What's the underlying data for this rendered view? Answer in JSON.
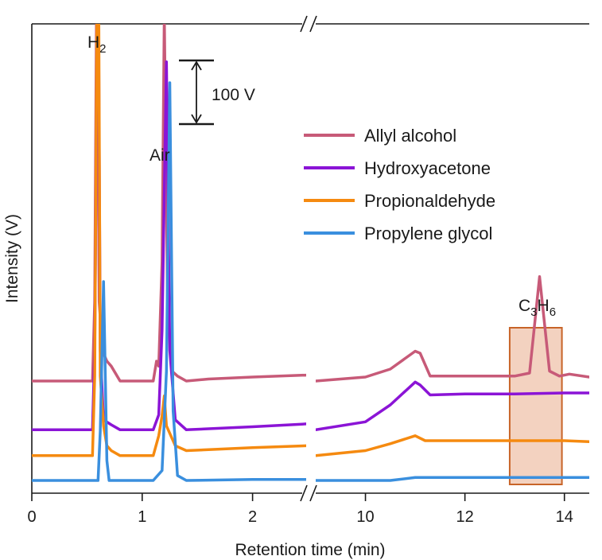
{
  "chart_data": {
    "type": "line",
    "title": "",
    "xlabel": "Retention time (min)",
    "ylabel": "Intensity (V)",
    "broken_axis": true,
    "segments": [
      {
        "xlim": [
          0,
          2.5
        ],
        "ticks": [
          0,
          1,
          2
        ],
        "tick_labels": [
          "0",
          "1",
          "2"
        ]
      },
      {
        "xlim": [
          9.0,
          14.5
        ],
        "ticks": [
          10,
          12,
          14
        ],
        "tick_labels": [
          "10",
          "12",
          "14"
        ]
      }
    ],
    "scale_bar": {
      "label": "100 V",
      "value": 100
    },
    "units_per_volt": 0.8,
    "legend": [
      {
        "name": "Allyl alcohol",
        "color": "#c75a78"
      },
      {
        "name": "Hydroxyacetone",
        "color": "#8b14d6"
      },
      {
        "name": "Propionaldehyde",
        "color": "#f58a10"
      },
      {
        "name": "Propylene glycol",
        "color": "#3a8fde"
      }
    ],
    "annotations": [
      {
        "id": "h2",
        "text": "H",
        "sub": "2"
      },
      {
        "id": "air",
        "text": "Air"
      },
      {
        "id": "c3h6",
        "parts": [
          "C",
          "3",
          "H",
          "6"
        ],
        "box_x": [
          12.9,
          13.95
        ],
        "box_color": "#f3d2c0",
        "box_edge": "#c86428"
      }
    ],
    "series": [
      {
        "name": "Allyl alcohol",
        "color": "#c75a78",
        "baseline": 100,
        "seg1": [
          [
            0,
            0
          ],
          [
            0.55,
            0
          ],
          [
            0.57,
            80
          ],
          [
            0.59,
            450
          ],
          [
            0.61,
            80
          ],
          [
            0.64,
            30
          ],
          [
            0.68,
            20
          ],
          [
            0.72,
            15
          ],
          [
            0.8,
            0
          ],
          [
            1.1,
            0
          ],
          [
            1.13,
            20
          ],
          [
            1.15,
            15
          ],
          [
            1.18,
            120
          ],
          [
            1.2,
            370
          ],
          [
            1.23,
            80
          ],
          [
            1.27,
            10
          ],
          [
            1.32,
            5
          ],
          [
            1.4,
            0
          ],
          [
            1.6,
            2
          ],
          [
            2.0,
            4
          ],
          [
            2.5,
            6
          ]
        ],
        "seg2": [
          [
            9.0,
            0
          ],
          [
            10.0,
            4
          ],
          [
            10.5,
            12
          ],
          [
            11.0,
            30
          ],
          [
            11.1,
            28
          ],
          [
            11.3,
            5
          ],
          [
            12.0,
            5
          ],
          [
            13.0,
            5
          ],
          [
            13.3,
            8
          ],
          [
            13.5,
            105
          ],
          [
            13.7,
            10
          ],
          [
            13.9,
            5
          ],
          [
            14.1,
            7
          ],
          [
            14.5,
            4
          ]
        ]
      },
      {
        "name": "Hydroxyacetone",
        "color": "#8b14d6",
        "baseline": 51,
        "seg1": [
          [
            0,
            0
          ],
          [
            0.55,
            0
          ],
          [
            0.57,
            80
          ],
          [
            0.6,
            505
          ],
          [
            0.62,
            80
          ],
          [
            0.65,
            10
          ],
          [
            0.72,
            5
          ],
          [
            0.8,
            0
          ],
          [
            1.1,
            0
          ],
          [
            1.15,
            15
          ],
          [
            1.18,
            100
          ],
          [
            1.22,
            370
          ],
          [
            1.25,
            80
          ],
          [
            1.3,
            10
          ],
          [
            1.4,
            0
          ],
          [
            2.0,
            3
          ],
          [
            2.5,
            6
          ]
        ],
        "seg2": [
          [
            9.0,
            0
          ],
          [
            10.0,
            8
          ],
          [
            10.5,
            25
          ],
          [
            11.0,
            48
          ],
          [
            11.1,
            45
          ],
          [
            11.3,
            35
          ],
          [
            12.0,
            36
          ],
          [
            13.0,
            36
          ],
          [
            14.0,
            37
          ],
          [
            14.5,
            37
          ]
        ]
      },
      {
        "name": "Propionaldehyde",
        "color": "#f58a10",
        "baseline": 25,
        "seg1": [
          [
            0,
            0
          ],
          [
            0.55,
            0
          ],
          [
            0.57,
            80
          ],
          [
            0.6,
            625
          ],
          [
            0.62,
            80
          ],
          [
            0.65,
            30
          ],
          [
            0.68,
            10
          ],
          [
            0.72,
            5
          ],
          [
            0.8,
            0
          ],
          [
            1.1,
            0
          ],
          [
            1.15,
            20
          ],
          [
            1.18,
            40
          ],
          [
            1.2,
            60
          ],
          [
            1.22,
            30
          ],
          [
            1.3,
            10
          ],
          [
            1.4,
            5
          ],
          [
            2.0,
            8
          ],
          [
            2.5,
            10
          ]
        ],
        "seg2": [
          [
            9.0,
            0
          ],
          [
            10.0,
            5
          ],
          [
            10.5,
            12
          ],
          [
            11.0,
            20
          ],
          [
            11.2,
            15
          ],
          [
            12.0,
            15
          ],
          [
            13.0,
            15
          ],
          [
            14.0,
            15
          ],
          [
            14.5,
            14
          ]
        ]
      },
      {
        "name": "Propylene glycol",
        "color": "#3a8fde",
        "baseline": 0,
        "seg1": [
          [
            0,
            0
          ],
          [
            0.6,
            0
          ],
          [
            0.62,
            50
          ],
          [
            0.65,
            200
          ],
          [
            0.68,
            20
          ],
          [
            0.7,
            0
          ],
          [
            1.0,
            0
          ],
          [
            1.1,
            0
          ],
          [
            1.18,
            10
          ],
          [
            1.22,
            110
          ],
          [
            1.25,
            400
          ],
          [
            1.28,
            70
          ],
          [
            1.32,
            5
          ],
          [
            1.4,
            0
          ],
          [
            2.0,
            1
          ],
          [
            2.5,
            1
          ]
        ],
        "seg2": [
          [
            9.0,
            0
          ],
          [
            10.5,
            0
          ],
          [
            11.0,
            3
          ],
          [
            11.5,
            3
          ],
          [
            12.0,
            3
          ],
          [
            13.0,
            3
          ],
          [
            14.0,
            3
          ],
          [
            14.5,
            3
          ]
        ]
      }
    ]
  }
}
